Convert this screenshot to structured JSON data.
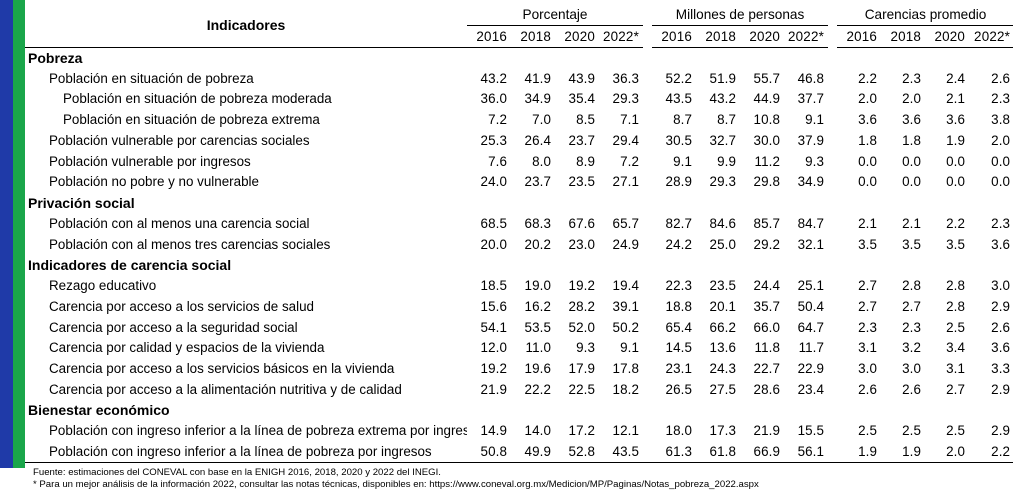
{
  "header": {
    "indicators": "Indicadores",
    "groups": [
      "Porcentaje",
      "Millones de personas",
      "Carencias promedio"
    ],
    "years": [
      "2016",
      "2018",
      "2020",
      "2022*"
    ]
  },
  "rows": [
    {
      "type": "section",
      "label": "Pobreza"
    },
    {
      "type": "item",
      "indent": 1,
      "label": "Población en situación de pobreza",
      "values": [
        "43.2",
        "41.9",
        "43.9",
        "36.3",
        "52.2",
        "51.9",
        "55.7",
        "46.8",
        "2.2",
        "2.3",
        "2.4",
        "2.6"
      ]
    },
    {
      "type": "item",
      "indent": 2,
      "label": "Población en situación de pobreza moderada",
      "values": [
        "36.0",
        "34.9",
        "35.4",
        "29.3",
        "43.5",
        "43.2",
        "44.9",
        "37.7",
        "2.0",
        "2.0",
        "2.1",
        "2.3"
      ]
    },
    {
      "type": "item",
      "indent": 2,
      "label": "Población en situación de pobreza extrema",
      "values": [
        "7.2",
        "7.0",
        "8.5",
        "7.1",
        "8.7",
        "8.7",
        "10.8",
        "9.1",
        "3.6",
        "3.6",
        "3.6",
        "3.8"
      ]
    },
    {
      "type": "item",
      "indent": 1,
      "label": "Población vulnerable por carencias sociales",
      "values": [
        "25.3",
        "26.4",
        "23.7",
        "29.4",
        "30.5",
        "32.7",
        "30.0",
        "37.9",
        "1.8",
        "1.8",
        "1.9",
        "2.0"
      ]
    },
    {
      "type": "item",
      "indent": 1,
      "label": "Población vulnerable por ingresos",
      "values": [
        "7.6",
        "8.0",
        "8.9",
        "7.2",
        "9.1",
        "9.9",
        "11.2",
        "9.3",
        "0.0",
        "0.0",
        "0.0",
        "0.0"
      ]
    },
    {
      "type": "item",
      "indent": 1,
      "label": "Población no pobre y no vulnerable",
      "values": [
        "24.0",
        "23.7",
        "23.5",
        "27.1",
        "28.9",
        "29.3",
        "29.8",
        "34.9",
        "0.0",
        "0.0",
        "0.0",
        "0.0"
      ]
    },
    {
      "type": "section",
      "label": "Privación social"
    },
    {
      "type": "item",
      "indent": 1,
      "label": "Población con al menos una carencia social",
      "values": [
        "68.5",
        "68.3",
        "67.6",
        "65.7",
        "82.7",
        "84.6",
        "85.7",
        "84.7",
        "2.1",
        "2.1",
        "2.2",
        "2.3"
      ]
    },
    {
      "type": "item",
      "indent": 1,
      "label": "Población con al menos tres carencias sociales",
      "values": [
        "20.0",
        "20.2",
        "23.0",
        "24.9",
        "24.2",
        "25.0",
        "29.2",
        "32.1",
        "3.5",
        "3.5",
        "3.5",
        "3.6"
      ]
    },
    {
      "type": "section",
      "label": "Indicadores de carencia social"
    },
    {
      "type": "item",
      "indent": 1,
      "label": "Rezago educativo",
      "values": [
        "18.5",
        "19.0",
        "19.2",
        "19.4",
        "22.3",
        "23.5",
        "24.4",
        "25.1",
        "2.7",
        "2.8",
        "2.8",
        "3.0"
      ]
    },
    {
      "type": "item",
      "indent": 1,
      "label": "Carencia por acceso a los servicios de salud",
      "values": [
        "15.6",
        "16.2",
        "28.2",
        "39.1",
        "18.8",
        "20.1",
        "35.7",
        "50.4",
        "2.7",
        "2.7",
        "2.8",
        "2.9"
      ]
    },
    {
      "type": "item",
      "indent": 1,
      "label": "Carencia por acceso a la seguridad social",
      "values": [
        "54.1",
        "53.5",
        "52.0",
        "50.2",
        "65.4",
        "66.2",
        "66.0",
        "64.7",
        "2.3",
        "2.3",
        "2.5",
        "2.6"
      ]
    },
    {
      "type": "item",
      "indent": 1,
      "label": "Carencia por calidad y espacios de la vivienda",
      "values": [
        "12.0",
        "11.0",
        "9.3",
        "9.1",
        "14.5",
        "13.6",
        "11.8",
        "11.7",
        "3.1",
        "3.2",
        "3.4",
        "3.6"
      ]
    },
    {
      "type": "item",
      "indent": 1,
      "label": "Carencia por acceso a los servicios básicos en la vivienda",
      "values": [
        "19.2",
        "19.6",
        "17.9",
        "17.8",
        "23.1",
        "24.3",
        "22.7",
        "22.9",
        "3.0",
        "3.0",
        "3.1",
        "3.3"
      ]
    },
    {
      "type": "item",
      "indent": 1,
      "label": "Carencia por acceso a la alimentación nutritiva y de calidad",
      "values": [
        "21.9",
        "22.2",
        "22.5",
        "18.2",
        "26.5",
        "27.5",
        "28.6",
        "23.4",
        "2.6",
        "2.6",
        "2.7",
        "2.9"
      ]
    },
    {
      "type": "section",
      "label": "Bienestar económico"
    },
    {
      "type": "item",
      "indent": 1,
      "label": "Población con ingreso inferior a la línea de pobreza extrema por ingresos",
      "values": [
        "14.9",
        "14.0",
        "17.2",
        "12.1",
        "18.0",
        "17.3",
        "21.9",
        "15.5",
        "2.5",
        "2.5",
        "2.5",
        "2.9"
      ]
    },
    {
      "type": "item",
      "indent": 1,
      "label": "Población con ingreso inferior a la línea de pobreza por ingresos",
      "values": [
        "50.8",
        "49.9",
        "52.8",
        "43.5",
        "61.3",
        "61.8",
        "66.9",
        "56.1",
        "1.9",
        "1.9",
        "2.0",
        "2.2"
      ]
    }
  ],
  "notes": {
    "source": "Fuente: estimaciones del CONEVAL con base en la ENIGH 2016, 2018, 2020 y 2022 del INEGI.",
    "footnote": "* Para un mejor análisis de la información 2022, consultar las notas técnicas, disponibles en: https://www.coneval.org.mx/Medicion/MP/Paginas/Notas_pobreza_2022.aspx"
  }
}
